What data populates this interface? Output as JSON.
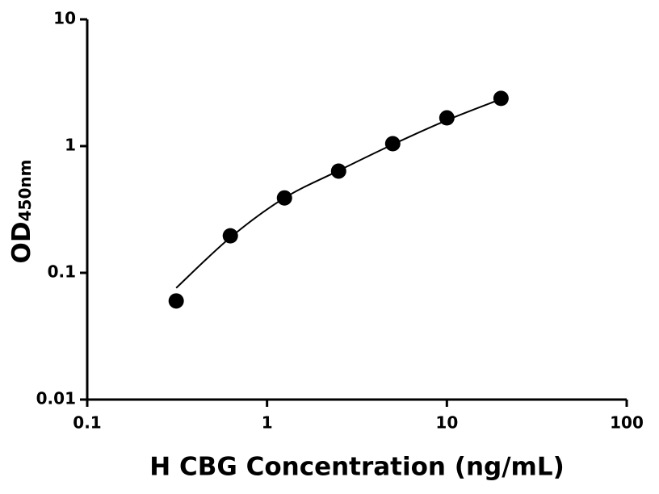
{
  "chart_data": {
    "type": "scatter",
    "x_label": "H CBG Concentration (ng/mL)",
    "y_label": "OD",
    "y_label_sub": "450nm",
    "x_scale": "log",
    "y_scale": "log",
    "xlim": [
      0.1,
      100
    ],
    "xticks": [
      0.1,
      1,
      10,
      100
    ],
    "ylim": [
      0.01,
      10
    ],
    "yticks": [
      0.01,
      0.1,
      1,
      10
    ],
    "series": [
      {
        "color": "#000000",
        "x": [
          0.3125,
          0.625,
          1.25,
          2.5,
          5,
          10,
          20
        ],
        "values": [
          0.06,
          0.196,
          0.39,
          0.635,
          1.045,
          1.67,
          2.38
        ]
      }
    ],
    "fit": {
      "color": "#000000",
      "x": [
        0.3125,
        0.625,
        1.25,
        2.5,
        5,
        10,
        20
      ],
      "values": [
        0.076,
        0.19,
        0.39,
        0.64,
        1.03,
        1.6,
        2.35
      ]
    }
  }
}
